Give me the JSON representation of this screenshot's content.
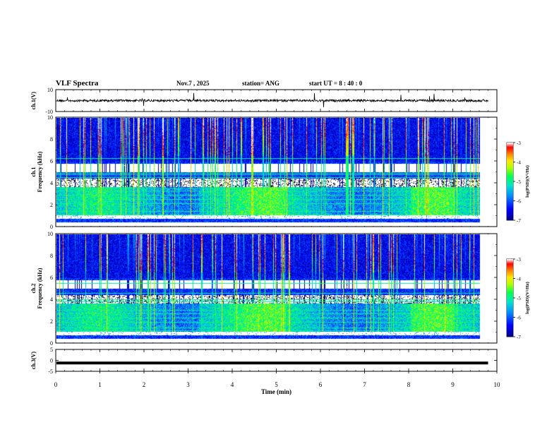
{
  "header": {
    "title": "VLF Spectra",
    "date": "Nov.7 , 2025",
    "station": "station= ANG",
    "start_time": "start UT = 8 : 40 : 0"
  },
  "chart_data": [
    {
      "type": "line",
      "name": "ch1-waveform",
      "ylabel": "ch.1(V)",
      "ylim": [
        -10,
        10
      ],
      "yticks": [
        "10",
        "-10"
      ],
      "xlim": [
        0,
        10
      ],
      "baseline": 0
    },
    {
      "type": "heatmap",
      "name": "ch1-spectrogram",
      "ylabel_line1": "ch.1",
      "ylabel_line2": "Frequency (kHz)",
      "ylim": [
        0,
        10
      ],
      "yticks": [
        "0",
        "2",
        "4",
        "6",
        "8",
        "10"
      ],
      "xlim": [
        0,
        10
      ],
      "data_extent_min": 9.8,
      "colorbar": {
        "label": "log(PSD)(V²/Hz)",
        "ticks": [
          "-3",
          "-4",
          "-5",
          "-6",
          "-7"
        ],
        "range": [
          -7,
          -3
        ]
      }
    },
    {
      "type": "heatmap",
      "name": "ch2-spectrogram",
      "ylabel_line1": "ch.2",
      "ylabel_line2": "Frequency (kHz)",
      "ylim": [
        0,
        10
      ],
      "yticks": [
        "0",
        "2",
        "4",
        "6",
        "8",
        "10"
      ],
      "xlim": [
        0,
        10
      ],
      "data_extent_min": 9.8,
      "colorbar": {
        "label": "log(PSD)(V²/Hz)",
        "ticks": [
          "-3",
          "-4",
          "-5",
          "-6",
          "-7"
        ],
        "range": [
          -7,
          -3
        ]
      }
    },
    {
      "type": "line",
      "name": "ch3-waveform",
      "ylabel": "ch.3(V)",
      "ylim": [
        -5,
        5
      ],
      "yticks": [
        "5",
        "0",
        "-5"
      ],
      "xlim": [
        0,
        10
      ],
      "baseline": -1.2
    }
  ],
  "x_axis": {
    "label": "Time (min)",
    "ticks": [
      "0",
      "1",
      "2",
      "3",
      "4",
      "5",
      "6",
      "7",
      "8",
      "9",
      "10"
    ]
  },
  "colors": {
    "axes": "#000000",
    "background": "#ffffff",
    "colormap": [
      "#000000",
      "#00008b",
      "#0000ff",
      "#00bfff",
      "#00ff7f",
      "#adff2f",
      "#ffff00",
      "#ff8c00",
      "#ff0000",
      "#ffffff"
    ]
  }
}
